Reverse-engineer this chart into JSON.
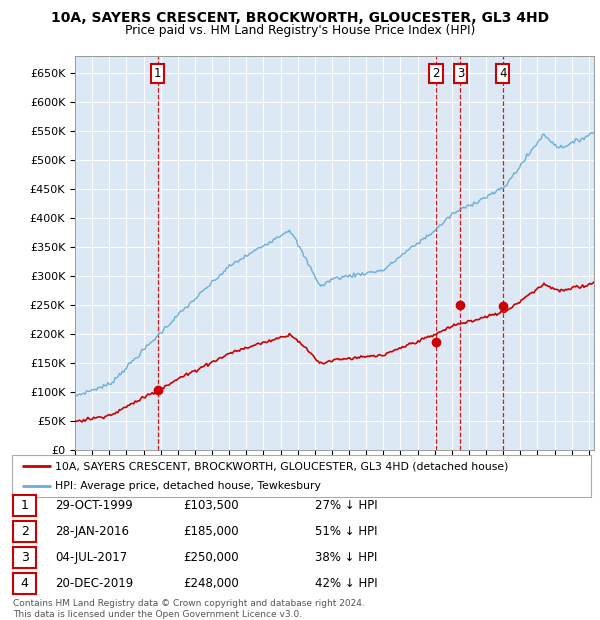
{
  "title1": "10A, SAYERS CRESCENT, BROCKWORTH, GLOUCESTER, GL3 4HD",
  "title2": "Price paid vs. HM Land Registry's House Price Index (HPI)",
  "background_color": "#dce9f5",
  "hpi_color": "#6aaed6",
  "price_color": "#cc0000",
  "vline_color": "#cc0000",
  "grid_color": "#ffffff",
  "ylim": [
    0,
    680000
  ],
  "yticks": [
    0,
    50000,
    100000,
    150000,
    200000,
    250000,
    300000,
    350000,
    400000,
    450000,
    500000,
    550000,
    600000,
    650000
  ],
  "sales": [
    {
      "num": 1,
      "date_num": 1999.83,
      "price": 103500,
      "label": "1"
    },
    {
      "num": 2,
      "date_num": 2016.08,
      "price": 185000,
      "label": "2"
    },
    {
      "num": 3,
      "date_num": 2017.5,
      "price": 250000,
      "label": "3"
    },
    {
      "num": 4,
      "date_num": 2019.97,
      "price": 248000,
      "label": "4"
    }
  ],
  "legend_entries": [
    "10A, SAYERS CRESCENT, BROCKWORTH, GLOUCESTER, GL3 4HD (detached house)",
    "HPI: Average price, detached house, Tewkesbury"
  ],
  "table_rows": [
    {
      "num": "1",
      "date": "29-OCT-1999",
      "price": "£103,500",
      "note": "27% ↓ HPI"
    },
    {
      "num": "2",
      "date": "28-JAN-2016",
      "price": "£185,000",
      "note": "51% ↓ HPI"
    },
    {
      "num": "3",
      "date": "04-JUL-2017",
      "price": "£250,000",
      "note": "38% ↓ HPI"
    },
    {
      "num": "4",
      "date": "20-DEC-2019",
      "price": "£248,000",
      "note": "42% ↓ HPI"
    }
  ],
  "footnote": "Contains HM Land Registry data © Crown copyright and database right 2024.\nThis data is licensed under the Open Government Licence v3.0.",
  "xmin": 1995.0,
  "xmax": 2025.3
}
